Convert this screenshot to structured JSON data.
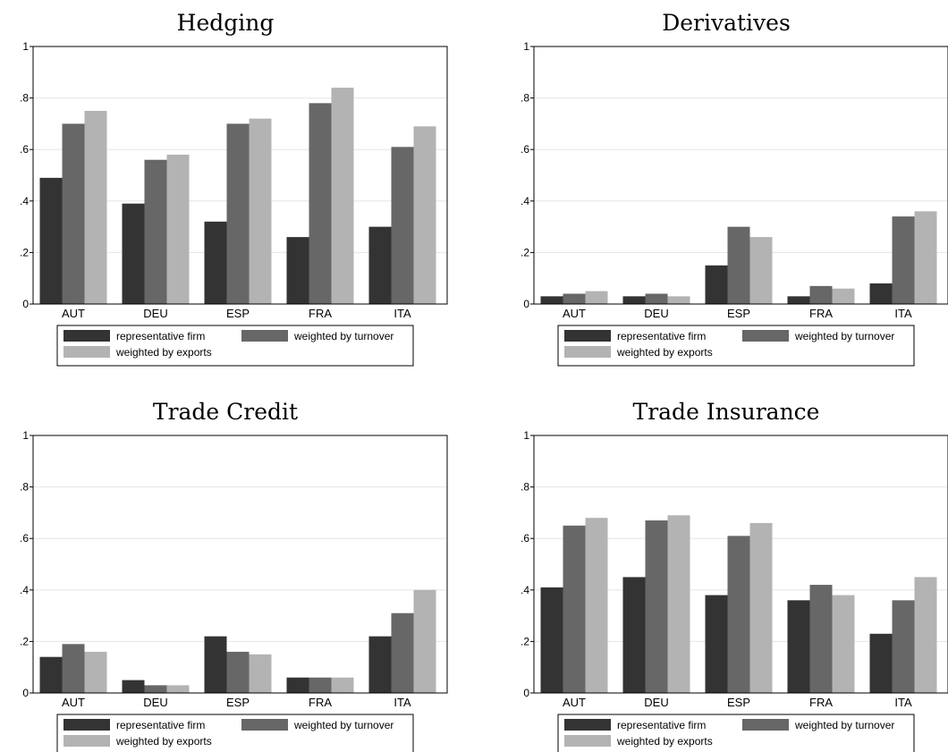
{
  "colors": {
    "representative": "#333333",
    "turnover": "#676767",
    "exports": "#b3b3b3",
    "grid": "#e6e6e6"
  },
  "chart_data": [
    {
      "type": "bar",
      "title": "Hedging",
      "categories": [
        "AUT",
        "DEU",
        "ESP",
        "FRA",
        "ITA"
      ],
      "ylim": [
        0,
        1
      ],
      "yticks": [
        "0",
        ".2",
        ".4",
        ".6",
        ".8",
        "1"
      ],
      "grid": true,
      "legend_position": "bottom",
      "series": [
        {
          "name": "representative firm",
          "values": [
            0.49,
            0.39,
            0.32,
            0.26,
            0.3
          ]
        },
        {
          "name": "weighted by turnover",
          "values": [
            0.7,
            0.56,
            0.7,
            0.78,
            0.61
          ]
        },
        {
          "name": "weighted by exports",
          "values": [
            0.75,
            0.58,
            0.72,
            0.84,
            0.69
          ]
        }
      ]
    },
    {
      "type": "bar",
      "title": "Derivatives",
      "categories": [
        "AUT",
        "DEU",
        "ESP",
        "FRA",
        "ITA"
      ],
      "ylim": [
        0,
        1
      ],
      "yticks": [
        "0",
        ".2",
        ".4",
        ".6",
        ".8",
        "1"
      ],
      "grid": true,
      "legend_position": "bottom",
      "series": [
        {
          "name": "representative firm",
          "values": [
            0.03,
            0.03,
            0.15,
            0.03,
            0.08
          ]
        },
        {
          "name": "weighted by turnover",
          "values": [
            0.04,
            0.04,
            0.3,
            0.07,
            0.34
          ]
        },
        {
          "name": "weighted by exports",
          "values": [
            0.05,
            0.03,
            0.26,
            0.06,
            0.36
          ]
        }
      ]
    },
    {
      "type": "bar",
      "title": "Trade Credit",
      "categories": [
        "AUT",
        "DEU",
        "ESP",
        "FRA",
        "ITA"
      ],
      "ylim": [
        0,
        1
      ],
      "yticks": [
        "0",
        ".2",
        ".4",
        ".6",
        ".8",
        "1"
      ],
      "grid": true,
      "legend_position": "bottom",
      "series": [
        {
          "name": "representative firm",
          "values": [
            0.14,
            0.05,
            0.22,
            0.06,
            0.22
          ]
        },
        {
          "name": "weighted by turnover",
          "values": [
            0.19,
            0.03,
            0.16,
            0.06,
            0.31
          ]
        },
        {
          "name": "weighted by exports",
          "values": [
            0.16,
            0.03,
            0.15,
            0.06,
            0.4
          ]
        }
      ]
    },
    {
      "type": "bar",
      "title": "Trade Insurance",
      "categories": [
        "AUT",
        "DEU",
        "ESP",
        "FRA",
        "ITA"
      ],
      "ylim": [
        0,
        1
      ],
      "yticks": [
        "0",
        ".2",
        ".4",
        ".6",
        ".8",
        "1"
      ],
      "grid": true,
      "legend_position": "bottom",
      "series": [
        {
          "name": "representative firm",
          "values": [
            0.41,
            0.45,
            0.38,
            0.36,
            0.23
          ]
        },
        {
          "name": "weighted by turnover",
          "values": [
            0.65,
            0.67,
            0.61,
            0.42,
            0.36
          ]
        },
        {
          "name": "weighted by exports",
          "values": [
            0.68,
            0.69,
            0.66,
            0.38,
            0.45
          ]
        }
      ]
    }
  ]
}
